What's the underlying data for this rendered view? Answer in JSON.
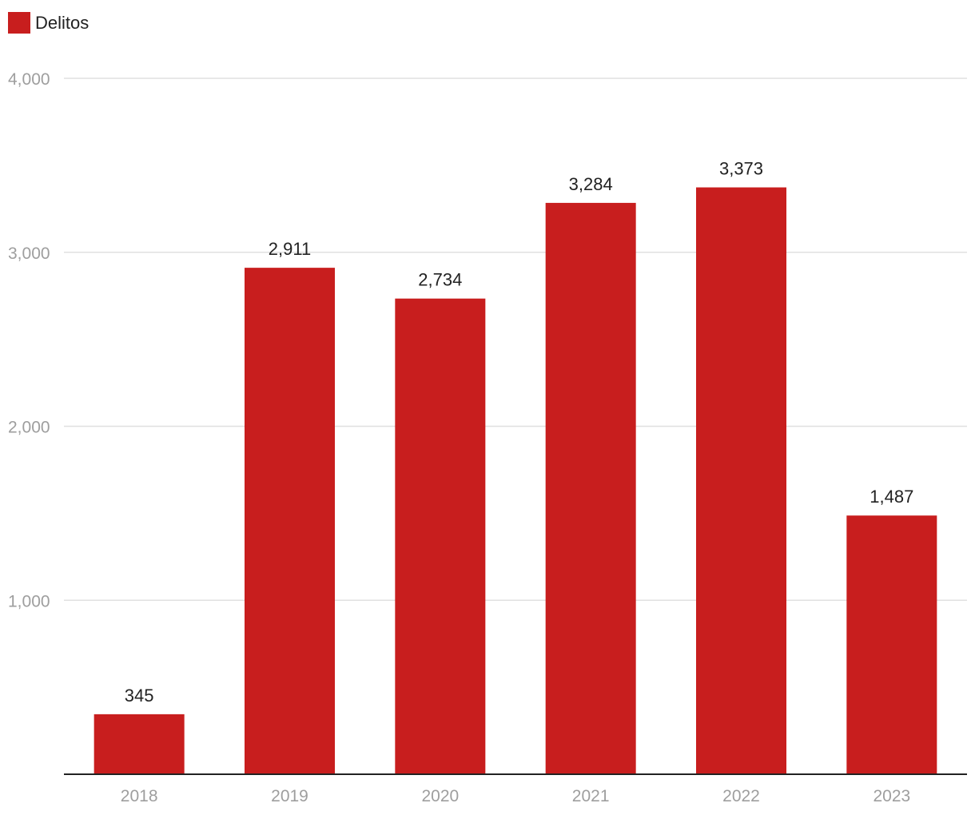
{
  "chart_data": {
    "type": "bar",
    "categories": [
      "2018",
      "2019",
      "2020",
      "2021",
      "2022",
      "2023"
    ],
    "series": [
      {
        "name": "Delitos",
        "values": [
          345,
          2911,
          2734,
          3284,
          3373,
          1487
        ],
        "data_labels": [
          "345",
          "2,911",
          "2,734",
          "3,284",
          "3,373",
          "1,487"
        ]
      }
    ],
    "ylim": [
      0,
      4000
    ],
    "yticks": [
      1000,
      2000,
      3000,
      4000
    ],
    "ytick_labels": [
      "1,000",
      "2,000",
      "3,000",
      "4,000"
    ],
    "grid": true,
    "legend_position": "top-left",
    "colors": {
      "bar": "#c81e1e",
      "grid": "#e0e0e0",
      "axis": "#222222",
      "tick_text": "#9e9e9e",
      "label_text": "#222222"
    }
  }
}
